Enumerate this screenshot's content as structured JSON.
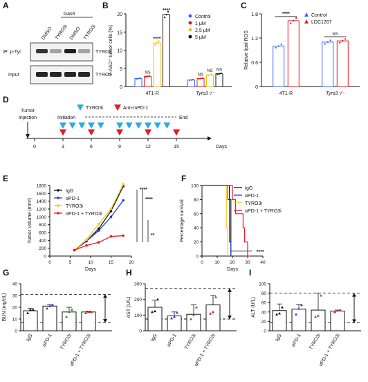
{
  "panels": {
    "A": {
      "letter": "A",
      "gas6": "Gas6",
      "lanes": [
        "DMSO",
        "TYRO3i",
        "DMSO",
        "TYRO3i"
      ],
      "row1_left": "IP: p-Tyr",
      "row1_right": "TYRO3",
      "row2_left": "Input",
      "row2_right": "TYRO3",
      "row1_band_intensity": [
        0.85,
        0.35,
        0.95,
        0.35
      ],
      "row2_band_intensity": [
        0.9,
        0.9,
        0.9,
        0.9
      ]
    },
    "B": {
      "letter": "B"
    },
    "C": {
      "letter": "C"
    },
    "D": {
      "letter": "D"
    },
    "E": {
      "letter": "E"
    },
    "F": {
      "letter": "F"
    },
    "G": {
      "letter": "G"
    },
    "H": {
      "letter": "H"
    },
    "I": {
      "letter": "I"
    }
  },
  "timeline": {
    "tumor_injection": "Tumor\nInjection",
    "initiation": "Initiation",
    "end": "End",
    "legend_tyro3i": "TYRO3i",
    "legend_antipd1": "Anti-mPD-1",
    "ticks": [
      0,
      3,
      6,
      9,
      12,
      15
    ],
    "axis_label": "Days",
    "tyro3i_days": [
      3,
      4,
      5,
      6,
      7,
      9,
      10,
      11,
      12,
      13,
      14
    ],
    "antipd1_days": [
      3,
      6,
      9,
      12,
      15
    ],
    "colors": {
      "tyro3i": "#29abe2",
      "antipd1": "#e8191f"
    }
  },
  "chart_data": [
    {
      "panel": "B",
      "type": "bar",
      "ylabel": "7-AAD⁺ tumor cells (%)",
      "ylim": [
        0,
        20
      ],
      "yticks": [
        0,
        5,
        10,
        15,
        20
      ],
      "groups": [
        "4T1-R",
        "Tyro3⁻/⁻"
      ],
      "series": [
        {
          "name": "Control",
          "color": "#3366ff",
          "values": [
            2.2,
            1.8
          ],
          "sig": [
            "",
            ""
          ]
        },
        {
          "name": "1 μM",
          "color": "#e8191f",
          "values": [
            2.8,
            2.2
          ],
          "sig": [
            "NS",
            "NS"
          ]
        },
        {
          "name": "2.5 μM",
          "color": "#f5c518",
          "values": [
            12.0,
            3.2
          ],
          "sig": [
            "****",
            "NS"
          ]
        },
        {
          "name": "5 μM",
          "color": "#111111",
          "values": [
            19.8,
            3.5
          ],
          "sig": [
            "****",
            "NS"
          ]
        }
      ]
    },
    {
      "panel": "C",
      "type": "bar",
      "ylabel": "Relative lipid ROS",
      "ylim": [
        0,
        1.8
      ],
      "yticks": [
        0,
        0.6,
        1.2,
        1.8
      ],
      "groups": [
        "4T1-R",
        "Tyro3⁻/⁻"
      ],
      "series": [
        {
          "name": "Control",
          "color": "#3366ff",
          "values": [
            1.0,
            1.1
          ]
        },
        {
          "name": "LDC1267",
          "color": "#e8191f",
          "values": [
            1.63,
            1.13
          ]
        }
      ],
      "sig": [
        "****",
        "NS"
      ]
    },
    {
      "panel": "E",
      "type": "line",
      "xlabel": "Days",
      "ylabel": "Tumor Volume (mm³)",
      "xlim": [
        0,
        20
      ],
      "xticks": [
        0,
        5,
        10,
        15,
        20
      ],
      "ylim": [
        0,
        1800
      ],
      "yticks": [
        0,
        200,
        400,
        600,
        800,
        1000,
        1200,
        1400,
        1600,
        1800
      ],
      "x": [
        6,
        9,
        12,
        15,
        18
      ],
      "series": [
        {
          "name": "IgG",
          "color": "#111111",
          "values": [
            150,
            380,
            700,
            1150,
            1780
          ]
        },
        {
          "name": "αPD-1",
          "color": "#1f3fd6",
          "values": [
            150,
            380,
            650,
            1000,
            1420
          ]
        },
        {
          "name": "TYRO3i",
          "color": "#f5c518",
          "values": [
            150,
            420,
            820,
            1200,
            1830
          ]
        },
        {
          "name": "αPD-1 + TYRO3i",
          "color": "#e8191f",
          "values": [
            150,
            270,
            350,
            500,
            520
          ]
        }
      ],
      "sig": [
        "****",
        "****",
        "**"
      ]
    },
    {
      "panel": "F",
      "type": "line",
      "xlabel": "Days",
      "ylabel": "Percentage survival",
      "xlim": [
        0,
        40
      ],
      "xticks": [
        0,
        10,
        20,
        30,
        40
      ],
      "ylim": [
        0,
        100
      ],
      "yticks": [
        0,
        20,
        40,
        60,
        80,
        100
      ],
      "series": [
        {
          "name": "IgG",
          "color": "#111111",
          "steps": [
            [
              0,
              100
            ],
            [
              18,
              100
            ],
            [
              18,
              80
            ],
            [
              19,
              80
            ],
            [
              19,
              0
            ]
          ]
        },
        {
          "name": "αPD-1",
          "color": "#1f3fd6",
          "steps": [
            [
              0,
              100
            ],
            [
              17,
              100
            ],
            [
              17,
              80
            ],
            [
              18,
              80
            ],
            [
              18,
              20
            ],
            [
              19,
              20
            ],
            [
              19,
              0
            ]
          ]
        },
        {
          "name": "TYRO3i",
          "color": "#f5c518",
          "steps": [
            [
              0,
              100
            ],
            [
              16,
              100
            ],
            [
              16,
              40
            ],
            [
              17,
              40
            ],
            [
              17,
              0
            ]
          ]
        },
        {
          "name": "αPD-1 + TYRO3i",
          "color": "#e8191f",
          "steps": [
            [
              0,
              100
            ],
            [
              20,
              100
            ],
            [
              20,
              80
            ],
            [
              22,
              80
            ],
            [
              22,
              60
            ],
            [
              27,
              60
            ],
            [
              27,
              40
            ],
            [
              28,
              40
            ],
            [
              28,
              20
            ],
            [
              30,
              20
            ],
            [
              30,
              0
            ],
            [
              32,
              0
            ]
          ]
        }
      ],
      "sig": "****"
    },
    {
      "panel": "G",
      "type": "bar",
      "ylabel": "BUN (mg/dL)",
      "ylim": [
        0,
        40
      ],
      "yticks": [
        0,
        10,
        20,
        30,
        40
      ],
      "categories": [
        "IgG",
        "αPD-1",
        "TYRO3i",
        "αPD-1 + TYRO3i"
      ],
      "values": [
        17,
        21,
        16,
        16
      ],
      "err": [
        2,
        1.5,
        4,
        0.5
      ],
      "points": [
        [
          15,
          18,
          18
        ],
        [
          19,
          21,
          22
        ],
        [
          12,
          16,
          18
        ],
        [
          15,
          16,
          16
        ]
      ],
      "point_colors": [
        "#111111",
        "#1f3fd6",
        "#2e8b2e",
        "#e8191f"
      ],
      "ref_range": [
        7,
        31
      ]
    },
    {
      "panel": "H",
      "type": "bar",
      "ylabel": "AST (U/L)",
      "ylim": [
        0,
        300
      ],
      "yticks": [
        0,
        100,
        200,
        300
      ],
      "categories": [
        "IgG",
        "αPD-1",
        "TYRO3i",
        "αPD-1 + TYRO3i"
      ],
      "values": [
        150,
        95,
        105,
        165
      ],
      "err": [
        45,
        25,
        60,
        60
      ],
      "points": [
        [
          120,
          125,
          200
        ],
        [
          80,
          90,
          115
        ],
        [
          75,
          100,
          150
        ],
        [
          110,
          120,
          215
        ]
      ],
      "point_colors": [
        "#111111",
        "#1f3fd6",
        "#2e8b2e",
        "#e8191f"
      ],
      "ref_range": [
        75,
        270
      ]
    },
    {
      "panel": "I",
      "type": "bar",
      "ylabel": "ALT (U/L)",
      "ylim": [
        0,
        100
      ],
      "yticks": [
        0,
        20,
        40,
        60,
        80,
        100
      ],
      "categories": [
        "IgG",
        "αPD-1",
        "TYRO3i",
        "αPD-1 + TYRO3i"
      ],
      "values": [
        43,
        46,
        44,
        42
      ],
      "err": [
        14,
        10,
        36,
        2
      ],
      "points": [
        [
          35,
          37,
          50
        ],
        [
          35,
          47,
          55
        ],
        [
          30,
          32,
          75
        ],
        [
          40,
          43,
          44
        ]
      ],
      "point_colors": [
        "#111111",
        "#1f3fd6",
        "#2e8b2e",
        "#e8191f"
      ],
      "ref_range": [
        17,
        80
      ]
    }
  ]
}
